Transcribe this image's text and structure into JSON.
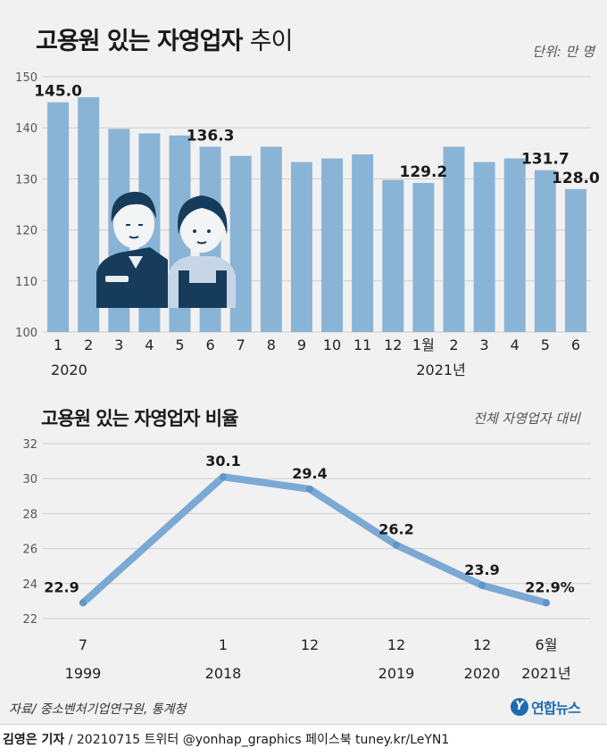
{
  "chart_data": [
    {
      "type": "bar",
      "title": "고용원 있는 자영업자",
      "title_suffix": "추이",
      "unit": "단위: 만 명",
      "categories": [
        "1",
        "2",
        "3",
        "4",
        "5",
        "6",
        "7",
        "8",
        "9",
        "10",
        "11",
        "12",
        "1월",
        "2",
        "3",
        "4",
        "5",
        "6"
      ],
      "year_labels": [
        "2020",
        "2021년"
      ],
      "values": [
        145.0,
        146.0,
        139.8,
        138.9,
        138.5,
        136.3,
        134.5,
        136.3,
        133.3,
        134.0,
        134.8,
        129.8,
        129.2,
        136.3,
        133.3,
        134.0,
        131.7,
        128.0
      ],
      "data_labels": [
        {
          "index": 0,
          "text": "145.0"
        },
        {
          "index": 5,
          "text": "136.3"
        },
        {
          "index": 12,
          "text": "129.2"
        },
        {
          "index": 16,
          "text": "131.7"
        },
        {
          "index": 17,
          "text": "128.0"
        }
      ],
      "ylim": [
        100,
        150
      ],
      "yticks": [
        100,
        110,
        120,
        130,
        140,
        150
      ],
      "color": "#8ab4d6"
    },
    {
      "type": "line",
      "title": "고용원 있는 자영업자 비율",
      "unit": "전체 자영업자 대비",
      "categories": [
        "7",
        "1",
        "12",
        "12",
        "12",
        "6월"
      ],
      "years": [
        "1999",
        "2018",
        "2019",
        "2019",
        "2020",
        "2021년"
      ],
      "year_shown": [
        true,
        true,
        false,
        true,
        true,
        true
      ],
      "values": [
        22.9,
        30.1,
        29.4,
        26.2,
        23.9,
        22.9
      ],
      "data_labels": [
        "22.9",
        "30.1",
        "29.4",
        "26.2",
        "23.9",
        "22.9%"
      ],
      "ylim": [
        22,
        32
      ],
      "yticks": [
        22,
        24,
        26,
        28,
        30,
        32
      ],
      "color": "#7ba9d3"
    }
  ],
  "source": "자료/ 중소벤처기업연구원, 통계청",
  "logo": {
    "mark": "Y",
    "text": "연합뉴스"
  },
  "footer": {
    "author": "김영은 기자",
    "rest": " / 20210715  트위터 @yonhap_graphics  페이스북 tuney.kr/LeYN1"
  }
}
